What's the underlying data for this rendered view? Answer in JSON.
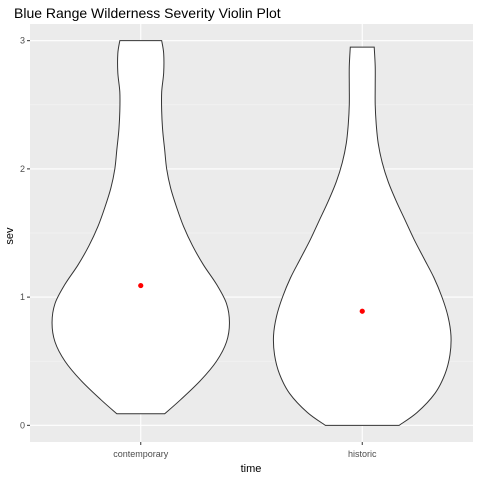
{
  "chart_data": {
    "type": "violin",
    "title": "Blue Range Wilderness Severity Violin Plot",
    "xlabel": "time",
    "ylabel": "sev",
    "categories": [
      "contemporary",
      "historic"
    ],
    "ylim": [
      -0.13,
      3.13
    ],
    "yticks": [
      0,
      1,
      2,
      3
    ],
    "grid": true,
    "legend": "none",
    "colors": {
      "panel": "#ebebeb",
      "grid": "#ffffff",
      "violin_fill": "#ffffff",
      "violin_outline": "#333333",
      "mean_point": "#ff0000"
    },
    "violins": [
      {
        "category": "contemporary",
        "mean": 1.09,
        "profile": [
          {
            "y": 0.09,
            "w": 0.24
          },
          {
            "y": 0.2,
            "w": 0.4
          },
          {
            "y": 0.35,
            "w": 0.6
          },
          {
            "y": 0.5,
            "w": 0.76
          },
          {
            "y": 0.65,
            "w": 0.86
          },
          {
            "y": 0.8,
            "w": 0.89
          },
          {
            "y": 0.95,
            "w": 0.86
          },
          {
            "y": 1.1,
            "w": 0.76
          },
          {
            "y": 1.25,
            "w": 0.63
          },
          {
            "y": 1.4,
            "w": 0.52
          },
          {
            "y": 1.55,
            "w": 0.43
          },
          {
            "y": 1.7,
            "w": 0.36
          },
          {
            "y": 1.85,
            "w": 0.3
          },
          {
            "y": 2.0,
            "w": 0.26
          },
          {
            "y": 2.15,
            "w": 0.24
          },
          {
            "y": 2.3,
            "w": 0.22
          },
          {
            "y": 2.45,
            "w": 0.21
          },
          {
            "y": 2.6,
            "w": 0.21
          },
          {
            "y": 2.75,
            "w": 0.23
          },
          {
            "y": 2.9,
            "w": 0.23
          },
          {
            "y": 3.0,
            "w": 0.21
          }
        ]
      },
      {
        "category": "historic",
        "mean": 0.89,
        "profile": [
          {
            "y": 0.0,
            "w": 0.37
          },
          {
            "y": 0.1,
            "w": 0.55
          },
          {
            "y": 0.25,
            "w": 0.73
          },
          {
            "y": 0.4,
            "w": 0.83
          },
          {
            "y": 0.55,
            "w": 0.88
          },
          {
            "y": 0.7,
            "w": 0.89
          },
          {
            "y": 0.85,
            "w": 0.86
          },
          {
            "y": 1.0,
            "w": 0.8
          },
          {
            "y": 1.15,
            "w": 0.72
          },
          {
            "y": 1.3,
            "w": 0.62
          },
          {
            "y": 1.45,
            "w": 0.52
          },
          {
            "y": 1.6,
            "w": 0.43
          },
          {
            "y": 1.75,
            "w": 0.34
          },
          {
            "y": 1.9,
            "w": 0.26
          },
          {
            "y": 2.05,
            "w": 0.2
          },
          {
            "y": 2.2,
            "w": 0.16
          },
          {
            "y": 2.35,
            "w": 0.14
          },
          {
            "y": 2.5,
            "w": 0.13
          },
          {
            "y": 2.65,
            "w": 0.13
          },
          {
            "y": 2.8,
            "w": 0.13
          },
          {
            "y": 2.95,
            "w": 0.12
          }
        ]
      }
    ]
  }
}
